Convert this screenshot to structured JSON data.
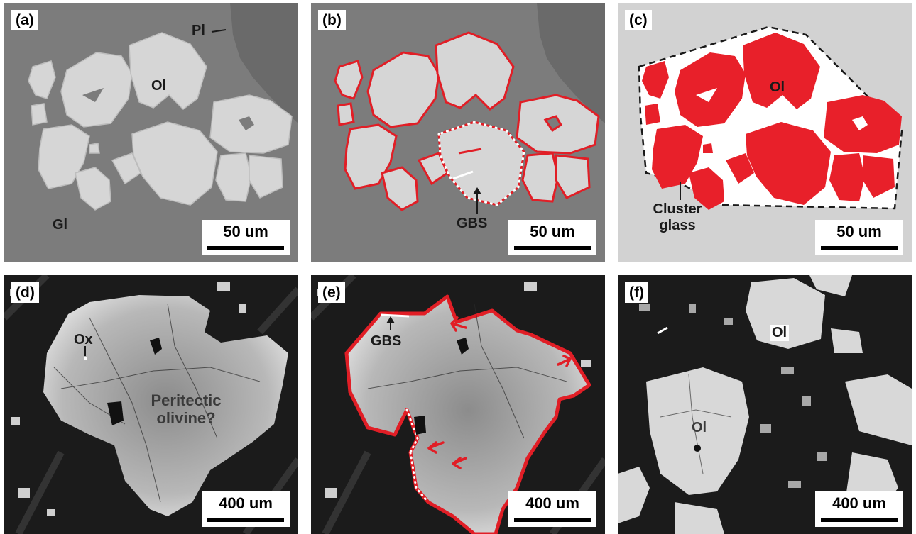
{
  "figure": {
    "panel_labels": [
      "(a)",
      "(b)",
      "(c)",
      "(d)",
      "(e)",
      "(f)"
    ],
    "scale_bars": [
      "50 um",
      "50 um",
      "50 um",
      "400 um",
      "400 um",
      "400 um"
    ]
  },
  "annotations": {
    "a_pl": "Pl",
    "a_ol": "Ol",
    "a_gl": "Gl",
    "b_gbs": "GBS",
    "c_ol": "Ol",
    "c_cluster_glass": "Cluster glass",
    "d_ox": "Ox",
    "d_peritectic": "Peritectic olivine?",
    "e_gbs": "GBS",
    "f_ol_top": "Ol",
    "f_ol_main": "Ol"
  },
  "colors": {
    "matrix_glass": "#7c7c7c",
    "olivine_grain": "#d6d6d6",
    "grain_outline": "#e11e26",
    "cluster_fill": "#e8202a",
    "cluster_bg": "#d2d2d2",
    "groundmass_dark": "#1b1b1b"
  }
}
